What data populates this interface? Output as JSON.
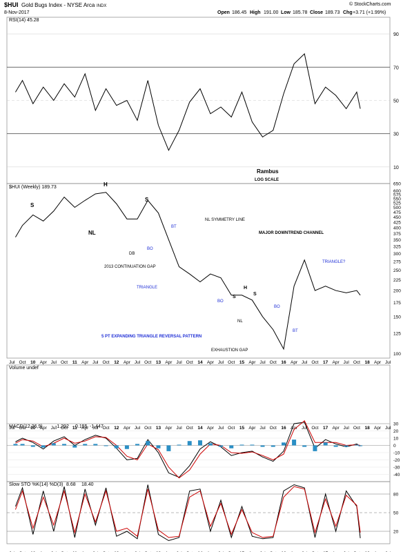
{
  "header": {
    "symbol": "$HUI",
    "name": "Gold Bugs Index - NYSE Arca",
    "exchange_tag": "INDX",
    "date": "8-Nov-2017",
    "open_label": "Open",
    "open": "186.45",
    "high_label": "High",
    "high": "191.00",
    "low_label": "Low",
    "low": "185.78",
    "close_label": "Close",
    "close": "189.73",
    "chg_label": "Chg",
    "chg": "+3.71 (+1.99%)",
    "copyright": "© StockCharts.com"
  },
  "colors": {
    "price_bar": "#000000",
    "trendline_blue": "#1f2fd6",
    "rsi_overbought_fill": "#3f7a3f",
    "rsi_oversold_fill": "#8a4a4a",
    "macd_signal": "#cc0000",
    "macd_hist": "#2b8fc5",
    "sto_d": "#cc0000",
    "annotation_text": "#1f2fd6"
  },
  "chart_data": [
    {
      "type": "line",
      "panel": "rsi",
      "title": "RSI(14) 45.28",
      "ylim": [
        0,
        100
      ],
      "yticks": [
        10,
        30,
        50,
        70,
        90
      ],
      "x": [
        "2009-08",
        "2009-10",
        "2010-01",
        "2010-04",
        "2010-07",
        "2010-10",
        "2011-01",
        "2011-04",
        "2011-07",
        "2011-10",
        "2012-01",
        "2012-04",
        "2012-07",
        "2012-10",
        "2013-01",
        "2013-04",
        "2013-07",
        "2013-10",
        "2014-01",
        "2014-04",
        "2014-07",
        "2014-10",
        "2015-01",
        "2015-04",
        "2015-07",
        "2015-10",
        "2016-01",
        "2016-04",
        "2016-07",
        "2016-10",
        "2017-01",
        "2017-04",
        "2017-07",
        "2017-10",
        "2017-11"
      ],
      "values": [
        55,
        62,
        48,
        58,
        50,
        60,
        52,
        66,
        44,
        57,
        47,
        50,
        38,
        62,
        35,
        20,
        32,
        49,
        57,
        42,
        46,
        40,
        55,
        37,
        28,
        32,
        54,
        72,
        78,
        48,
        58,
        53,
        45,
        55,
        45
      ],
      "title2": "Rambus",
      "title3": "LOG SCALE"
    },
    {
      "type": "line",
      "panel": "price",
      "title": "$HUI (Weekly) 189.73",
      "log_scale": true,
      "ylim": [
        95,
        650
      ],
      "yticks": [
        100,
        125,
        150,
        175,
        200,
        225,
        250,
        275,
        300,
        325,
        350,
        375,
        400,
        425,
        450,
        475,
        500,
        525,
        550,
        575,
        600,
        650
      ],
      "xticks": [
        "Jul",
        "Oct",
        "10",
        "Apr",
        "Jul",
        "Oct",
        "11",
        "Apr",
        "Jul",
        "Oct",
        "12",
        "Apr",
        "Jul",
        "Oct",
        "13",
        "Apr",
        "Jul",
        "Oct",
        "14",
        "Apr",
        "Jul",
        "Oct",
        "15",
        "Apr",
        "Jul",
        "Oct",
        "16",
        "Apr",
        "Jul",
        "Oct",
        "17",
        "Apr",
        "Jul",
        "Oct",
        "18",
        "Apr",
        "Jul"
      ],
      "x": [
        "2009-08",
        "2009-10",
        "2010-01",
        "2010-04",
        "2010-07",
        "2010-10",
        "2011-01",
        "2011-04",
        "2011-07",
        "2011-10",
        "2012-01",
        "2012-04",
        "2012-07",
        "2012-10",
        "2013-01",
        "2013-04",
        "2013-07",
        "2013-10",
        "2014-01",
        "2014-04",
        "2014-07",
        "2014-10",
        "2015-01",
        "2015-04",
        "2015-07",
        "2015-10",
        "2016-01",
        "2016-04",
        "2016-07",
        "2016-10",
        "2017-01",
        "2017-04",
        "2017-07",
        "2017-10",
        "2017-11"
      ],
      "values": [
        360,
        410,
        460,
        430,
        480,
        560,
        500,
        540,
        580,
        590,
        520,
        440,
        440,
        540,
        470,
        350,
        260,
        240,
        220,
        240,
        230,
        190,
        190,
        180,
        150,
        130,
        105,
        210,
        280,
        200,
        210,
        200,
        195,
        200,
        190
      ],
      "annotations": [
        "S",
        "H",
        "S",
        "NL",
        "DB",
        "BO",
        "BT",
        "NL SYMMETRY LINE",
        "MAJOR DOWNTREND CHANNEL",
        "2013 CONTINUATION GAP",
        "TRIANGLE",
        "BO",
        "S",
        "H",
        "S",
        "NL",
        "BO",
        "BT",
        "5 PT EXPANDING TRIANGLE REVERSAL PATTERN",
        "EXHAUSTION GAP",
        "TRIANGLE?"
      ]
    },
    {
      "type": "bar",
      "panel": "volume",
      "title": "Volume undef",
      "values": []
    },
    {
      "type": "line",
      "panel": "macd",
      "title": "MACD(12,26,9)",
      "macd": "-1.292",
      "signal": "0.155",
      "hist": "-1.447",
      "ylim": [
        -50,
        30
      ],
      "yticks": [
        30,
        20,
        10,
        0,
        -10,
        -20,
        -30,
        -40
      ],
      "x": [
        "2009-08",
        "2009-10",
        "2010-01",
        "2010-04",
        "2010-07",
        "2010-10",
        "2011-01",
        "2011-04",
        "2011-07",
        "2011-10",
        "2012-01",
        "2012-04",
        "2012-07",
        "2012-10",
        "2013-01",
        "2013-04",
        "2013-07",
        "2013-10",
        "2014-01",
        "2014-04",
        "2014-07",
        "2014-10",
        "2015-01",
        "2015-04",
        "2015-07",
        "2015-10",
        "2016-01",
        "2016-04",
        "2016-07",
        "2016-10",
        "2017-01",
        "2017-04",
        "2017-07",
        "2017-10",
        "2017-11"
      ],
      "series": [
        {
          "name": "MACD",
          "values": [
            5,
            10,
            4,
            -5,
            6,
            12,
            0,
            8,
            14,
            10,
            -4,
            -20,
            -18,
            8,
            -10,
            -38,
            -44,
            -28,
            -5,
            5,
            -2,
            -14,
            -10,
            -8,
            -16,
            -22,
            -8,
            30,
            32,
            -4,
            8,
            2,
            -2,
            2,
            -1
          ]
        },
        {
          "name": "Signal",
          "values": [
            3,
            8,
            6,
            -2,
            3,
            10,
            3,
            6,
            12,
            11,
            0,
            -15,
            -20,
            2,
            -6,
            -30,
            -45,
            -34,
            -12,
            2,
            0,
            -10,
            -11,
            -9,
            -14,
            -20,
            -12,
            22,
            34,
            4,
            4,
            4,
            0,
            1,
            0
          ]
        }
      ]
    },
    {
      "type": "line",
      "panel": "stochastic",
      "title": "Slow STO %K(14) %D(3)",
      "k": "8.68",
      "d": "18.40",
      "ylim": [
        0,
        100
      ],
      "yticks": [
        80,
        50,
        20
      ],
      "x": [
        "2009-08",
        "2009-10",
        "2010-01",
        "2010-04",
        "2010-07",
        "2010-10",
        "2011-01",
        "2011-04",
        "2011-07",
        "2011-10",
        "2012-01",
        "2012-04",
        "2012-07",
        "2012-10",
        "2013-01",
        "2013-04",
        "2013-07",
        "2013-10",
        "2014-01",
        "2014-04",
        "2014-07",
        "2014-10",
        "2015-01",
        "2015-04",
        "2015-07",
        "2015-10",
        "2016-01",
        "2016-04",
        "2016-07",
        "2016-10",
        "2017-01",
        "2017-04",
        "2017-07",
        "2017-10",
        "2017-11"
      ],
      "series": [
        {
          "name": "%K",
          "values": [
            60,
            90,
            15,
            85,
            20,
            92,
            10,
            88,
            30,
            90,
            12,
            20,
            8,
            95,
            15,
            5,
            10,
            85,
            88,
            20,
            70,
            10,
            60,
            12,
            8,
            10,
            85,
            95,
            90,
            10,
            80,
            20,
            85,
            60,
            9
          ]
        },
        {
          "name": "%D",
          "values": [
            55,
            85,
            25,
            75,
            30,
            85,
            18,
            80,
            35,
            85,
            20,
            25,
            12,
            88,
            22,
            10,
            12,
            75,
            85,
            28,
            65,
            15,
            55,
            18,
            10,
            12,
            75,
            92,
            88,
            18,
            72,
            28,
            78,
            62,
            18
          ]
        }
      ]
    }
  ]
}
